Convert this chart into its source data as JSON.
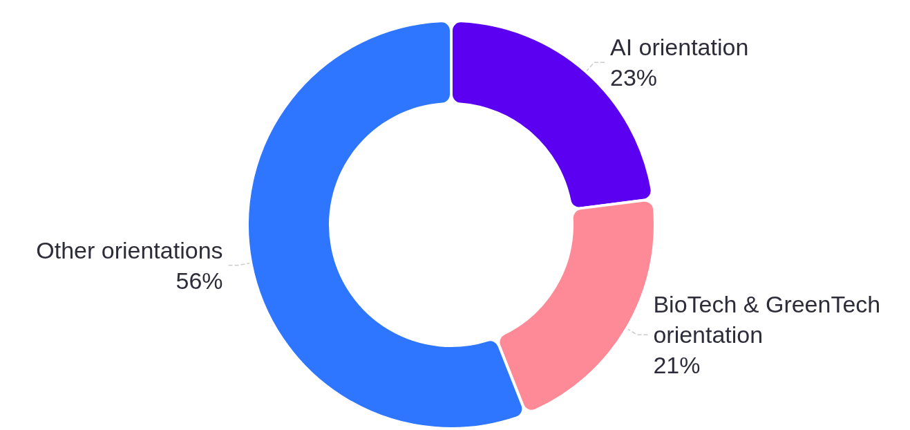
{
  "chart_data": {
    "type": "donut",
    "categories": [
      "AI orientation",
      "BioTech & GreenTech orientation",
      "Other orientations"
    ],
    "values": [
      23,
      21,
      56
    ],
    "colors": [
      "#5b00f0",
      "#ff8a97",
      "#2e75ff"
    ],
    "value_labels": [
      "23%",
      "21%",
      "56%"
    ]
  }
}
